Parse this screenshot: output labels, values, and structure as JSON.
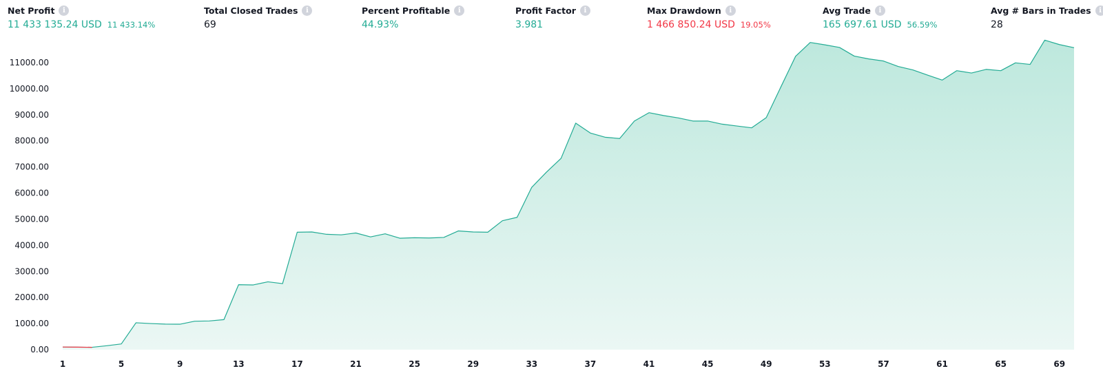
{
  "stats": [
    {
      "title": "Net Profit",
      "value": "11 433 135.24 USD",
      "sub": "11 433.14%",
      "color": "green"
    },
    {
      "title": "Total Closed Trades",
      "value": "69",
      "sub": "",
      "color": "dark"
    },
    {
      "title": "Percent Profitable",
      "value": "44.93%",
      "sub": "",
      "color": "green"
    },
    {
      "title": "Profit Factor",
      "value": "3.981",
      "sub": "",
      "color": "green"
    },
    {
      "title": "Max Drawdown",
      "value": "1 466 850.24 USD",
      "sub": "19.05%",
      "color": "red"
    },
    {
      "title": "Avg Trade",
      "value": "165 697.61 USD",
      "sub": "56.59%",
      "color": "green"
    },
    {
      "title": "Avg # Bars in Trades",
      "value": "28",
      "sub": "",
      "color": "dark"
    }
  ],
  "info_icon_glyph": "i",
  "chart_data": {
    "type": "area",
    "title": "",
    "xlabel": "",
    "ylabel": "",
    "ylim": [
      0,
      12000
    ],
    "yticks": [
      "0.00",
      "1000.00",
      "2000.00",
      "3000.00",
      "4000.00",
      "5000.00",
      "6000.00",
      "7000.00",
      "8000.00",
      "9000.00",
      "10000.00",
      "11000.00"
    ],
    "xticks": [
      "1",
      "5",
      "9",
      "13",
      "17",
      "21",
      "25",
      "29",
      "33",
      "37",
      "41",
      "45",
      "49",
      "53",
      "57",
      "61",
      "65",
      "69"
    ],
    "x": [
      1,
      2,
      3,
      4,
      5,
      6,
      7,
      8,
      9,
      10,
      11,
      12,
      13,
      14,
      15,
      16,
      17,
      18,
      19,
      20,
      21,
      22,
      23,
      24,
      25,
      26,
      27,
      28,
      29,
      30,
      31,
      32,
      33,
      34,
      35,
      36,
      37,
      38,
      39,
      40,
      41,
      42,
      43,
      44,
      45,
      46,
      47,
      48,
      49,
      50,
      51,
      52,
      53,
      54,
      55,
      56,
      57,
      58,
      59,
      60,
      61,
      62,
      63,
      64,
      65,
      66,
      67,
      68,
      69,
      70
    ],
    "values": [
      100,
      95,
      90,
      150,
      220,
      1030,
      1000,
      980,
      975,
      1090,
      1100,
      1150,
      2490,
      2480,
      2600,
      2530,
      4500,
      4510,
      4420,
      4400,
      4470,
      4320,
      4440,
      4270,
      4290,
      4280,
      4300,
      4550,
      4510,
      4500,
      4940,
      5070,
      6220,
      6800,
      7330,
      8680,
      8300,
      8140,
      8090,
      8760,
      9080,
      8970,
      8880,
      8760,
      8760,
      8640,
      8570,
      8500,
      8890,
      10070,
      11240,
      11770,
      11680,
      11580,
      11250,
      11140,
      11060,
      10850,
      10720,
      10520,
      10330,
      10690,
      10600,
      10740,
      10690,
      10990,
      10930,
      11860,
      11690,
      11570
    ],
    "drawdown_range_x": [
      2,
      3
    ],
    "colors": {
      "line": "#22ab94",
      "fill_top": "#bde8dd",
      "fill_bottom": "#ebf7f4",
      "drawdown": "#f23645"
    }
  }
}
